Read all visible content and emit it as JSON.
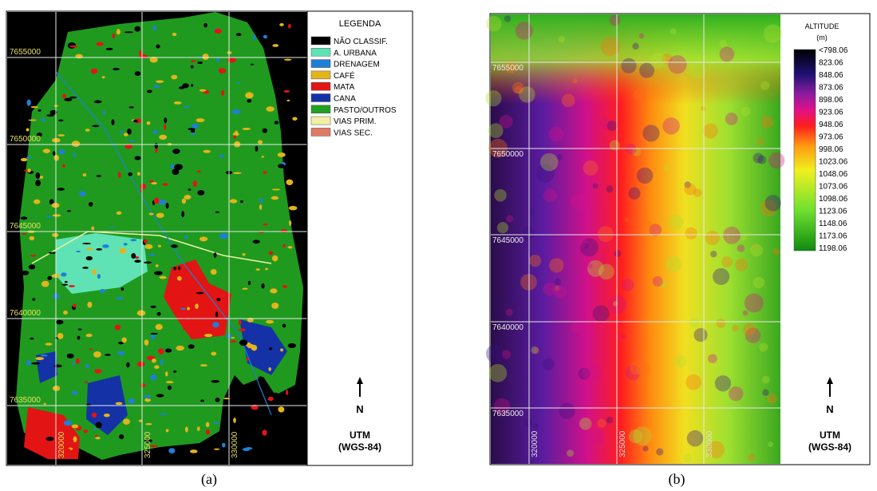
{
  "panels": [
    {
      "caption": "(a)",
      "legend": {
        "title": "LEGENDA",
        "items": [
          {
            "label": "NÃO CLASSIF.",
            "color": "#000000"
          },
          {
            "label": "A. URBANA",
            "color": "#5fe3b4"
          },
          {
            "label": "DRENAGEM",
            "color": "#1f7fd6"
          },
          {
            "label": "CAFÉ",
            "color": "#e3b41c"
          },
          {
            "label": "MATA",
            "color": "#e31414"
          },
          {
            "label": "CANA",
            "color": "#1432a6"
          },
          {
            "label": "PASTO/OUTROS",
            "color": "#21a021"
          },
          {
            "label": "VIAS PRIM.",
            "color": "#f2f0a6"
          },
          {
            "label": "VIAS SEC.",
            "color": "#e07a64"
          }
        ]
      },
      "northing": [
        "7655000",
        "7650000",
        "7645000",
        "7640000",
        "7635000"
      ],
      "easting": [
        "320000",
        "325000",
        "330000"
      ],
      "north": "N",
      "projection": "UTM",
      "datum": "(WGS-84)"
    },
    {
      "caption": "(b)",
      "legend": {
        "title": "ALTITUDE",
        "unit": "(m)",
        "labels": [
          "<798.06",
          "823.06",
          "848.06",
          "873.06",
          "898.06",
          "923.06",
          "948.06",
          "973.06",
          "998.06",
          "1023.06",
          "1048.06",
          "1073.06",
          "1098.06",
          "1123.06",
          "1148.06",
          "1173.06",
          "1198.06"
        ]
      },
      "northing": [
        "7655000",
        "7650000",
        "7645000",
        "7640000",
        "7635000"
      ],
      "easting": [
        "320000",
        "325000",
        "330000"
      ],
      "north": "N",
      "projection": "UTM",
      "datum": "(WGS-84)"
    }
  ]
}
